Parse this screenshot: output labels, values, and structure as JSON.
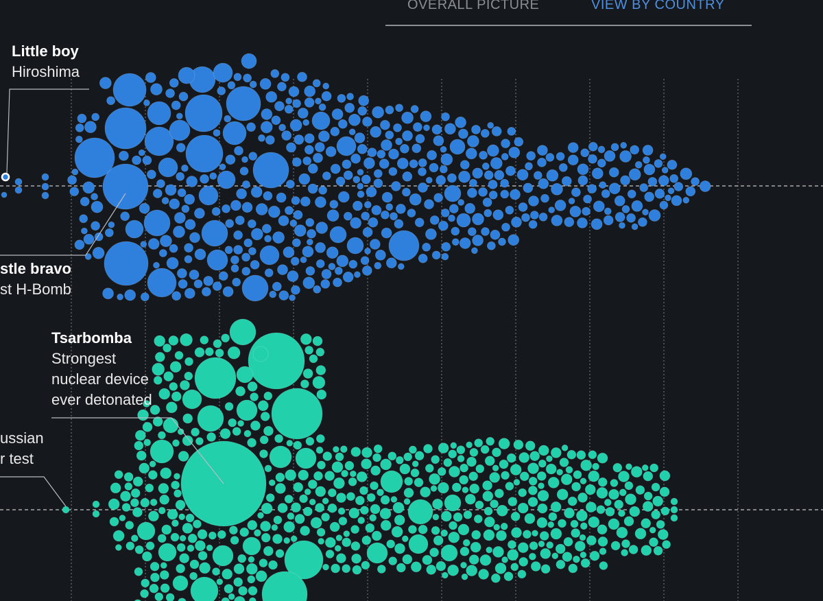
{
  "tabs": [
    {
      "label": "OVERALL PICTURE",
      "active": false
    },
    {
      "label": "VIEW BY COUNTRY",
      "active": true
    }
  ],
  "annotations": {
    "little_boy": {
      "title": "Little boy",
      "lines": [
        "Hiroshima"
      ]
    },
    "castle_bravo": {
      "title": "stle bravo",
      "lines": [
        "st H-Bomb"
      ]
    },
    "tsarbomba": {
      "title": "Tsarbomba",
      "lines": [
        "Strongest",
        "nuclear device",
        "ever detonated"
      ]
    },
    "first_russian": {
      "title": "",
      "lines": [
        "ussian",
        "r test"
      ]
    }
  },
  "colors": {
    "background": "#15181c",
    "usa_series": "#2f7fdc",
    "russia_series": "#22d1ac",
    "gridline": "#d8d8d8",
    "active_tab": "#4f8fe0"
  },
  "chart_data": {
    "type": "scatter",
    "description_style": "beeswarm",
    "gridlines_x": 10,
    "series": [
      {
        "key": "usa",
        "color": "#2f7fdc",
        "notable": [
          {
            "label": "Little boy"
          },
          {
            "label": "stle bravo"
          }
        ]
      },
      {
        "key": "russia",
        "color": "#22d1ac",
        "notable": [
          {
            "label": "Tsarbomba"
          },
          {
            "label": "ussian"
          }
        ]
      }
    ]
  }
}
